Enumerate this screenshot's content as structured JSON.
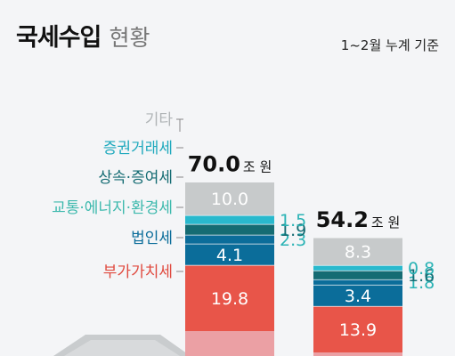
{
  "header": {
    "title_main": "국세수입",
    "title_sub": "현황",
    "basis": "1~2월 누계 기준"
  },
  "colors": {
    "etc": "#c7cacb",
    "securities": "#29b9cd",
    "inheritance": "#156c73",
    "transport": "#0b6d9a",
    "corporate": "#0b6d9a",
    "vat": "#e85549",
    "income": "#eba0a4"
  },
  "chart_data": {
    "type": "bar",
    "stacked": true,
    "unit": "조 원",
    "bars": [
      {
        "total_number": "70.0",
        "total_unit": "조 원",
        "segments": [
          {
            "name": "부가가치세",
            "value": 19.8
          },
          {
            "name": "법인세",
            "value": 4.1
          },
          {
            "name": "교통·에너지·환경세",
            "value": 2.3
          },
          {
            "name": "상속·증여세",
            "value": 1.9
          },
          {
            "name": "증권거래세",
            "value": 1.5
          },
          {
            "name": "기타",
            "value": 10.0
          }
        ]
      },
      {
        "total_number": "54.2",
        "total_unit": "조 원",
        "segments": [
          {
            "name": "부가가치세",
            "value": 13.9
          },
          {
            "name": "법인세",
            "value": 3.4
          },
          {
            "name": "교통·에너지·환경세",
            "value": 1.8
          },
          {
            "name": "상속·증여세",
            "value": 1.6
          },
          {
            "name": "증권거래세",
            "value": 0.8
          },
          {
            "name": "기타",
            "value": 8.3
          }
        ]
      }
    ],
    "legend": [
      {
        "name": "기타",
        "color": "#b0b4b6"
      },
      {
        "name": "증권거래세",
        "color": "#1fa9bd"
      },
      {
        "name": "상속·증여세",
        "color": "#156c73"
      },
      {
        "name": "교통·에너지·환경세",
        "color": "#3db9ad"
      },
      {
        "name": "법인세",
        "color": "#0b6d9a"
      },
      {
        "name": "부가가치세",
        "color": "#e04a3f"
      }
    ]
  }
}
